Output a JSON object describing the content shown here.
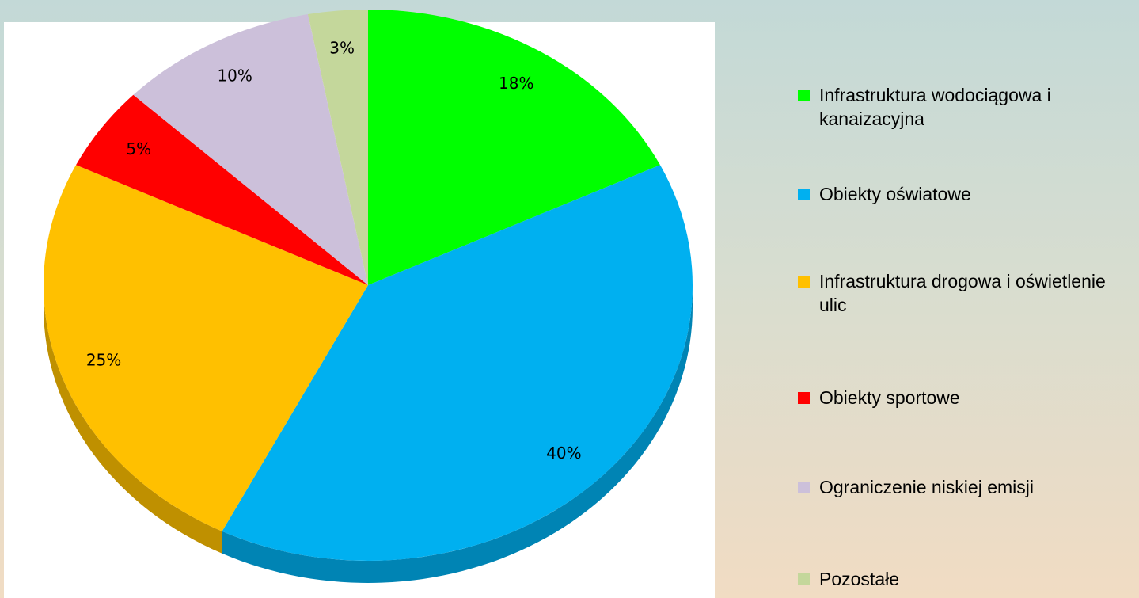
{
  "chart_data": {
    "type": "pie",
    "categories": [
      "Infrastruktura wodociągowa i kanaizacyjna",
      "Obiekty oświatowe",
      "Infrastruktura drogowa i oświetlenie ulic",
      "Obiekty sportowe",
      "Ograniczenie niskiej emisji",
      "Pozostałe"
    ],
    "values": [
      18,
      40,
      25,
      5,
      10,
      3
    ],
    "value_labels": [
      "18%",
      "40%",
      "25%",
      "5%",
      "10%",
      "3%"
    ],
    "colors": [
      "#00ff00",
      "#00b0f0",
      "#ffc000",
      "#ff0000",
      "#ccc0da",
      "#c4d79b"
    ],
    "legend": "right"
  }
}
